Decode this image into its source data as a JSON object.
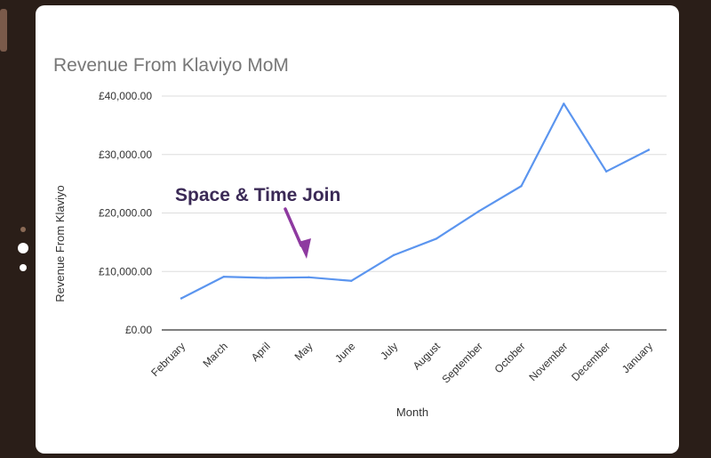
{
  "chart_data": {
    "type": "line",
    "title": "Revenue From Klaviyo MoM",
    "xlabel": "Month",
    "ylabel": "Revenue From Klaviyo",
    "categories": [
      "February",
      "March",
      "April",
      "May",
      "June",
      "July",
      "August",
      "September",
      "October",
      "November",
      "December",
      "January"
    ],
    "series": [
      {
        "values": [
          5400,
          9100,
          8900,
          9000,
          8400,
          12800,
          15600,
          20300,
          24600,
          38700,
          27100,
          30800
        ]
      }
    ],
    "ylim": [
      0,
      40000
    ],
    "yticks": [
      0,
      10000,
      20000,
      30000,
      40000
    ],
    "ytick_labels": [
      "£0.00",
      "£10,000.00",
      "£20,000.00",
      "£30,000.00",
      "£40,000.00"
    ],
    "grid": true,
    "legend": "none",
    "line_color": "#5b95ef",
    "annotation": {
      "text": "Space & Time Join",
      "points_to": "May",
      "text_color": "#3b2a56",
      "arrow_color": "#8e3aa0"
    }
  }
}
